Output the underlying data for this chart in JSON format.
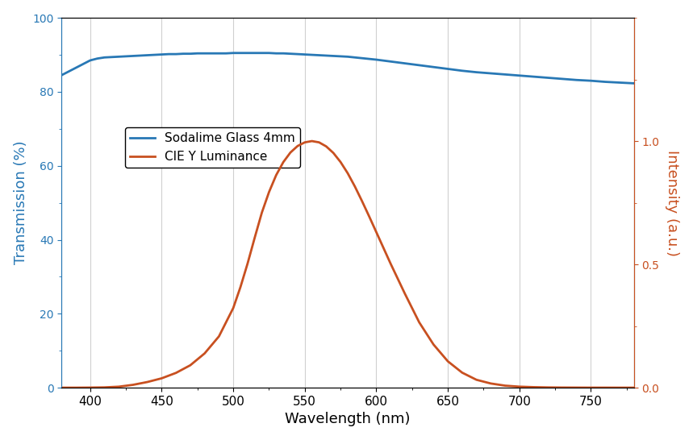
{
  "title": "",
  "xlabel": "Wavelength (nm)",
  "ylabel_left": "Transmission (%)",
  "ylabel_right": "Intensity (a.u.)",
  "legend": [
    "Sodalime Glass 4mm",
    "CIE Y Luminance"
  ],
  "line_colors": [
    "#2878b5",
    "#c85020"
  ],
  "xlim": [
    380,
    780
  ],
  "ylim_left": [
    0,
    100
  ],
  "ylim_right": [
    0,
    1.5
  ],
  "yticks_left": [
    0,
    20,
    40,
    60,
    80,
    100
  ],
  "yticks_right": [
    0,
    0.5,
    1.0
  ],
  "xticks": [
    400,
    450,
    500,
    550,
    600,
    650,
    700,
    750
  ],
  "glass_x": [
    380,
    385,
    390,
    395,
    400,
    405,
    410,
    415,
    420,
    425,
    430,
    435,
    440,
    445,
    450,
    455,
    460,
    465,
    470,
    475,
    480,
    485,
    490,
    495,
    500,
    505,
    510,
    515,
    520,
    525,
    530,
    535,
    540,
    545,
    550,
    555,
    560,
    565,
    570,
    575,
    580,
    585,
    590,
    595,
    600,
    610,
    620,
    630,
    640,
    650,
    660,
    670,
    680,
    690,
    700,
    710,
    720,
    730,
    740,
    750,
    760,
    770,
    780
  ],
  "glass_y": [
    84.5,
    85.5,
    86.5,
    87.5,
    88.5,
    89.0,
    89.3,
    89.4,
    89.5,
    89.6,
    89.7,
    89.8,
    89.9,
    90.0,
    90.1,
    90.2,
    90.2,
    90.3,
    90.3,
    90.4,
    90.4,
    90.4,
    90.4,
    90.4,
    90.5,
    90.5,
    90.5,
    90.5,
    90.5,
    90.5,
    90.4,
    90.4,
    90.3,
    90.2,
    90.1,
    90.0,
    89.9,
    89.8,
    89.7,
    89.6,
    89.5,
    89.3,
    89.1,
    88.9,
    88.7,
    88.2,
    87.7,
    87.2,
    86.7,
    86.2,
    85.7,
    85.3,
    85.0,
    84.7,
    84.4,
    84.1,
    83.8,
    83.5,
    83.2,
    83.0,
    82.7,
    82.5,
    82.3
  ],
  "cie_x": [
    380,
    390,
    400,
    410,
    420,
    430,
    440,
    450,
    460,
    470,
    480,
    490,
    500,
    505,
    510,
    515,
    520,
    525,
    530,
    535,
    540,
    545,
    550,
    555,
    560,
    565,
    570,
    575,
    580,
    585,
    590,
    595,
    600,
    610,
    620,
    630,
    640,
    650,
    660,
    670,
    680,
    690,
    700,
    710,
    720,
    730,
    740,
    750,
    760,
    770,
    780
  ],
  "cie_y": [
    0.0,
    0.0,
    0.0004,
    0.0012,
    0.004,
    0.0116,
    0.023,
    0.038,
    0.06,
    0.091,
    0.139,
    0.208,
    0.323,
    0.4073,
    0.503,
    0.6082,
    0.71,
    0.7932,
    0.862,
    0.9149,
    0.954,
    0.9803,
    0.995,
    1.0002,
    0.995,
    0.9786,
    0.952,
    0.9154,
    0.87,
    0.8163,
    0.757,
    0.6949,
    0.631,
    0.503,
    0.381,
    0.265,
    0.175,
    0.107,
    0.061,
    0.032,
    0.017,
    0.0082,
    0.0041,
    0.0021,
    0.001,
    0.0005,
    0.0003,
    0.0001,
    0.0001,
    0.0,
    0.0
  ],
  "background_color": "#ffffff",
  "grid_color": "#d0d0d0"
}
